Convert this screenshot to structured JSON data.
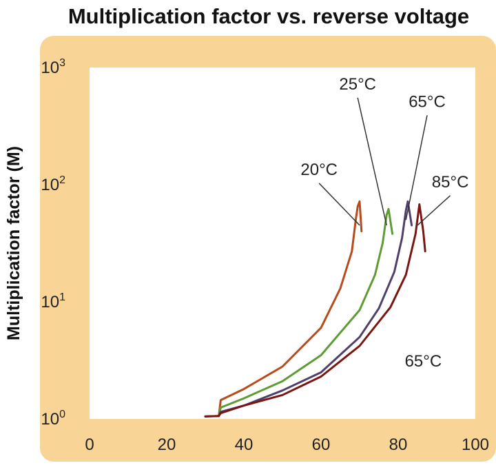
{
  "chart_data": {
    "type": "line",
    "title": "Multiplication factor vs. reverse voltage",
    "xlabel": "",
    "ylabel": "Multiplication factor (M)",
    "xlim": [
      0,
      100
    ],
    "ylim": [
      1,
      1000
    ],
    "y_scale": "log",
    "grid": false,
    "x_ticks": [
      "0",
      "20",
      "40",
      "60",
      "80",
      "100"
    ],
    "y_ticks": [
      {
        "base": "10",
        "exp": "0"
      },
      {
        "base": "10",
        "exp": "1"
      },
      {
        "base": "10",
        "exp": "2"
      },
      {
        "base": "10",
        "exp": "3"
      }
    ],
    "colors": {
      "frame": "#f8d596",
      "plot_bg": "#ffffff",
      "s20": "#b84a1c",
      "s25": "#5e9b35",
      "s65": "#4f3f6a",
      "s85": "#7a1612",
      "leader": "#333333"
    },
    "series": [
      {
        "color_key": "s20",
        "x": [
          30,
          33.5,
          34,
          40,
          50,
          60,
          65,
          68,
          69,
          69.5,
          70,
          70.5
        ],
        "y": [
          1.05,
          1.06,
          1.45,
          1.8,
          2.8,
          6,
          13,
          27,
          50,
          65,
          72,
          40
        ]
      },
      {
        "color_key": "s25",
        "x": [
          33.5,
          34,
          40,
          50,
          60,
          70,
          74,
          76,
          77,
          77.5,
          78.5
        ],
        "y": [
          1.06,
          1.25,
          1.5,
          2.1,
          3.5,
          8.5,
          17,
          32,
          55,
          62,
          38
        ]
      },
      {
        "color_key": "s65",
        "x": [
          33.5,
          34,
          40,
          50,
          60,
          70,
          75,
          79,
          81,
          82,
          82.5,
          83.5
        ],
        "y": [
          1.06,
          1.15,
          1.3,
          1.75,
          2.5,
          5,
          8.8,
          18,
          35,
          60,
          72,
          45
        ]
      },
      {
        "color_key": "s85",
        "x": [
          30,
          33.5,
          34,
          40,
          50,
          60,
          70,
          78,
          82,
          84.5,
          85.5,
          86.5,
          87
        ],
        "y": [
          1.05,
          1.06,
          1.12,
          1.3,
          1.6,
          2.3,
          4.2,
          9,
          17,
          38,
          68,
          40,
          27
        ]
      }
    ],
    "annotations": [
      {
        "text": "20°C",
        "x": 59.5,
        "y": 121,
        "target": [
          70,
          45
        ]
      },
      {
        "text": "25°C",
        "x": 69.5,
        "y": 650,
        "target": [
          77,
          45
        ]
      },
      {
        "text": "65°C",
        "x": 87.5,
        "y": 460,
        "target": [
          82,
          50
        ]
      },
      {
        "text": "85°C",
        "x": 93.5,
        "y": 95,
        "target": [
          85,
          45
        ]
      },
      {
        "text": "65°C",
        "x": 86.5,
        "y": 2.8
      }
    ]
  }
}
